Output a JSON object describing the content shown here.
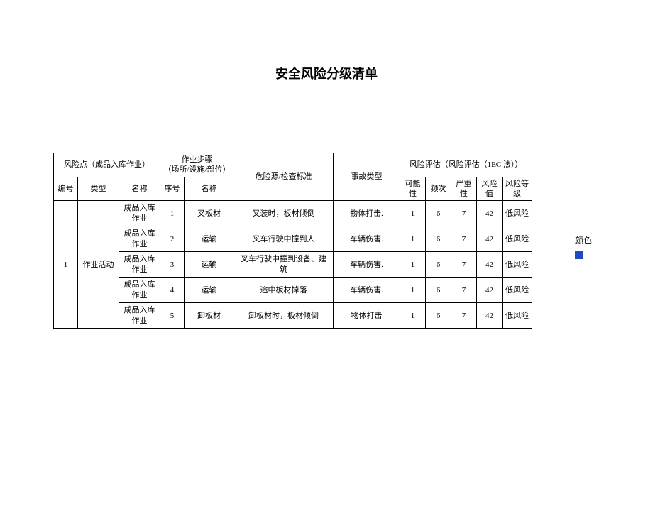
{
  "title": "安全风险分级清单",
  "headers": {
    "risk_point": "风险点（成品入库作业）",
    "step": "作业步骤",
    "step_sub": "（场所/设施/部位）",
    "hazard": "危险源/检查标准",
    "accident": "事故类型",
    "assessment": "风险评估（风险评估（1EC 法））",
    "id": "编号",
    "type": "类型",
    "name": "名称",
    "step_no": "序号",
    "step_name": "名称",
    "possibility": "可能性",
    "frequency": "频次",
    "severity": "严重性",
    "value": "风险值",
    "level": "风险等级"
  },
  "group": {
    "id": "1",
    "type": "作业活动"
  },
  "rows": [
    {
      "name": "成品入库作业",
      "step_no": "1",
      "step_name": "叉板材",
      "hazard": "叉装时，板材倾倒",
      "accident": "物体打击.",
      "kn": "1",
      "pc": "6",
      "yz": "7",
      "val": "42",
      "lvl": "低风险"
    },
    {
      "name": "成品入库作业",
      "step_no": "2",
      "step_name": "运输",
      "hazard": "叉车行驶中撞到人",
      "accident": "车辆伤害.",
      "kn": "1",
      "pc": "6",
      "yz": "7",
      "val": "42",
      "lvl": "低风险"
    },
    {
      "name": "成品入库作业",
      "step_no": "3",
      "step_name": "运输",
      "hazard": "叉车行驶中撞到设备、建筑",
      "accident": "车辆伤害.",
      "kn": "1",
      "pc": "6",
      "yz": "7",
      "val": "42",
      "lvl": "低风险"
    },
    {
      "name": "成品入库作业",
      "step_no": "4",
      "step_name": "运输",
      "hazard": "途中板材掉落",
      "accident": "车辆伤害.",
      "kn": "1",
      "pc": "6",
      "yz": "7",
      "val": "42",
      "lvl": "低风险"
    },
    {
      "name": "成品入库作业",
      "step_no": "5",
      "step_name": "卸板材",
      "hazard": "卸板材时，板材倾倒",
      "accident": "物体打击",
      "kn": "1",
      "pc": "6",
      "yz": "7",
      "val": "42",
      "lvl": "低风险"
    }
  ],
  "legend": {
    "label": "颜色",
    "swatch_color": "#1f49c6"
  },
  "colors": {
    "border": "#000000",
    "background": "#ffffff",
    "text": "#000000"
  }
}
